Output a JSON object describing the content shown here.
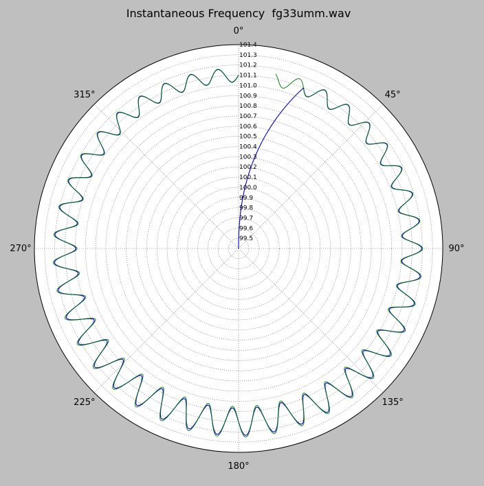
{
  "chart_data": {
    "type": "line",
    "projection": "polar",
    "title": "Instantaneous Frequency  fg33umm.wav",
    "theta_zero_location": "top",
    "theta_direction": "clockwise",
    "angle_ticks": [
      "0°",
      "45°",
      "90°",
      "135°",
      "180°",
      "225°",
      "270°",
      "315°"
    ],
    "angle_tick_values": [
      0,
      45,
      90,
      135,
      180,
      225,
      270,
      315
    ],
    "rlim": [
      99.4,
      101.4
    ],
    "radial_ticks": [
      99.5,
      99.6,
      99.7,
      99.8,
      99.9,
      100.0,
      100.1,
      100.2,
      100.3,
      100.4,
      100.5,
      100.6,
      100.7,
      100.8,
      100.9,
      101.0,
      101.1,
      101.2,
      101.3,
      101.4
    ],
    "radial_tick_labels": [
      "99.5",
      "99.6",
      "99.7",
      "99.8",
      "99.9",
      "100.0",
      "100.1",
      "100.2",
      "100.3",
      "100.4",
      "100.5",
      "100.6",
      "100.7",
      "100.8",
      "100.9",
      "101.0",
      "101.1",
      "101.2",
      "101.3",
      "101.4"
    ],
    "grid": true,
    "series": [
      {
        "color": "#0000cc",
        "lead_in": {
          "theta_start": 0,
          "theta_end": 22,
          "r_start": 99.4,
          "r_end": 101.1
        },
        "base_r": 101.1,
        "ripple_amplitude": 0.1,
        "ripple_cycles": 41,
        "theta_range": [
          22,
          360
        ]
      },
      {
        "color": "#007700",
        "base_r": 101.1,
        "ripple_amplitude": 0.11,
        "ripple_cycles": 41,
        "theta_range": [
          12,
          360
        ]
      }
    ]
  },
  "colors": {
    "figure_background": "#bfbfbf",
    "axes_background": "#ffffff",
    "grid": "#555555"
  }
}
